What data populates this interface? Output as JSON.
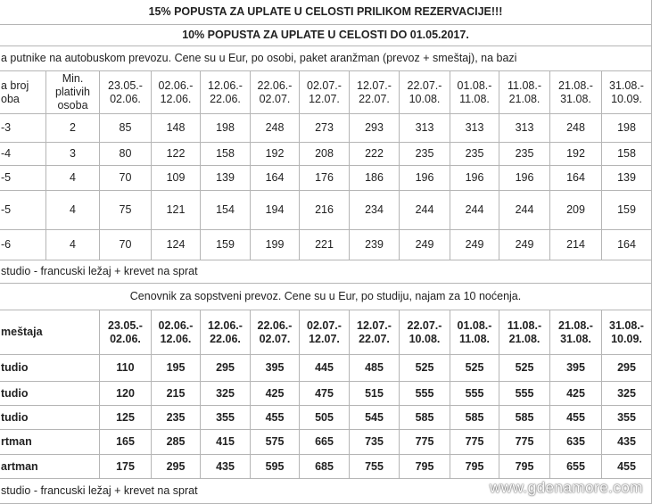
{
  "banner": [
    "15% POPUSTA ZA UPLATE U CELOSTI PRILIKOM REZERVACIJE!!!",
    "10% POPUSTA ZA UPLATE U CELOSTI DO 01.05.2017."
  ],
  "table1": {
    "caption": "a putnike na autobuskom prevozu. Cene su u Eur, po osobi, paket aranžman (prevoz + smeštaj), na bazi",
    "header": {
      "col0": [
        "a broj",
        "oba"
      ],
      "col1": [
        "Min.",
        "plativih",
        "osoba"
      ],
      "dates": [
        [
          "23.05.-",
          "02.06."
        ],
        [
          "02.06.-",
          "12.06."
        ],
        [
          "12.06.-",
          "22.06."
        ],
        [
          "22.06.-",
          "02.07."
        ],
        [
          "02.07.-",
          "12.07."
        ],
        [
          "12.07.-",
          "22.07."
        ],
        [
          "22.07.-",
          "10.08."
        ],
        [
          "01.08.-",
          "11.08."
        ],
        [
          "11.08.-",
          "21.08."
        ],
        [
          "21.08.-",
          "31.08."
        ],
        [
          "31.08.-",
          "10.09."
        ]
      ]
    },
    "rows": [
      [
        "-3",
        2,
        85,
        148,
        198,
        248,
        273,
        293,
        313,
        313,
        313,
        248,
        198
      ],
      [
        "-4",
        3,
        80,
        122,
        158,
        192,
        208,
        222,
        235,
        235,
        235,
        192,
        158
      ],
      [
        "-5",
        4,
        70,
        109,
        139,
        164,
        176,
        186,
        196,
        196,
        196,
        164,
        139
      ],
      [
        "-5",
        4,
        75,
        121,
        154,
        194,
        216,
        234,
        244,
        244,
        244,
        209,
        159
      ],
      [
        "-6",
        4,
        70,
        124,
        159,
        199,
        221,
        239,
        249,
        249,
        249,
        214,
        164
      ]
    ]
  },
  "note1": "studio - francuski ležaj + krevet na sprat",
  "table2": {
    "caption": "Cenovnik za sopstveni prevoz. Cene su u Eur, po studiju, najam za 10 noćenja.",
    "header": {
      "col0": "meštaja",
      "dates": [
        [
          "23.05.-",
          "02.06."
        ],
        [
          "02.06.-",
          "12.06."
        ],
        [
          "12.06.-",
          "22.06."
        ],
        [
          "22.06.-",
          "02.07."
        ],
        [
          "02.07.-",
          "12.07."
        ],
        [
          "12.07.-",
          "22.07."
        ],
        [
          "22.07.-",
          "10.08."
        ],
        [
          "01.08.-",
          "11.08."
        ],
        [
          "11.08.-",
          "21.08."
        ],
        [
          "21.08.-",
          "31.08."
        ],
        [
          "31.08.-",
          "10.09."
        ]
      ]
    },
    "rows": [
      [
        "tudio",
        110,
        195,
        295,
        395,
        445,
        485,
        525,
        525,
        525,
        395,
        295
      ],
      [
        "tudio",
        120,
        215,
        325,
        425,
        475,
        515,
        555,
        555,
        555,
        425,
        325
      ],
      [
        "tudio",
        125,
        235,
        355,
        455,
        505,
        545,
        585,
        585,
        585,
        455,
        355
      ],
      [
        "rtman",
        165,
        285,
        415,
        575,
        665,
        735,
        775,
        775,
        775,
        635,
        435
      ],
      [
        "artman",
        175,
        295,
        435,
        595,
        685,
        755,
        795,
        795,
        795,
        655,
        455
      ]
    ]
  },
  "note2": "studio - francuski ležaj + krevet na sprat",
  "watermark": "www.gdenamore.com"
}
